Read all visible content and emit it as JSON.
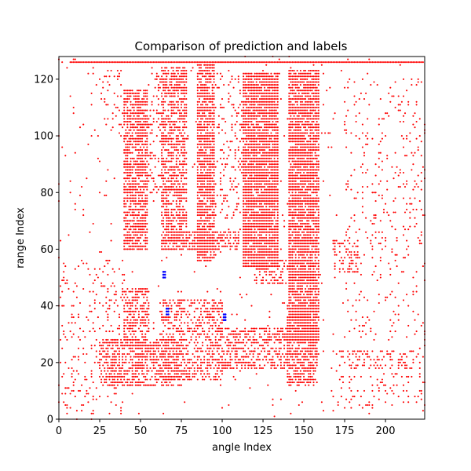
{
  "chart_data": {
    "type": "scatter",
    "title": "Comparison of prediction and labels",
    "xlabel": "angle Index",
    "ylabel": "range Index",
    "xlim": [
      0,
      224
    ],
    "ylim": [
      0,
      128
    ],
    "xticks": [
      0,
      25,
      50,
      75,
      100,
      125,
      150,
      175,
      200
    ],
    "yticks": [
      0,
      20,
      40,
      60,
      80,
      100,
      120
    ],
    "grid": false,
    "legend": "none",
    "colors": {
      "prediction": "#ff0000",
      "labels": "#0000ff"
    },
    "series": [
      {
        "marker_color": "#ff0000",
        "regions": [
          {
            "x": [
              7,
              223
            ],
            "y": [
              126,
              126
            ],
            "density": 1.0
          },
          {
            "x": [
              40,
              54
            ],
            "y": [
              60,
              116
            ],
            "density": 0.75
          },
          {
            "x": [
              63,
              78
            ],
            "y": [
              62,
              124
            ],
            "density": 0.65
          },
          {
            "x": [
              85,
              95
            ],
            "y": [
              56,
              126
            ],
            "density": 0.85
          },
          {
            "x": [
              113,
              134
            ],
            "y": [
              54,
              122
            ],
            "density": 0.9
          },
          {
            "x": [
              141,
              159
            ],
            "y": [
              28,
              123
            ],
            "density": 0.85
          },
          {
            "x": [
              63,
              110
            ],
            "y": [
              60,
              66
            ],
            "density": 0.6
          },
          {
            "x": [
              25,
              75
            ],
            "y": [
              12,
              28
            ],
            "density": 0.55
          },
          {
            "x": [
              40,
              55
            ],
            "y": [
              26,
              46
            ],
            "density": 0.6
          },
          {
            "x": [
              63,
              100
            ],
            "y": [
              14,
              42
            ],
            "density": 0.45
          },
          {
            "x": [
              100,
              140
            ],
            "y": [
              18,
              32
            ],
            "density": 0.5
          },
          {
            "x": [
              140,
              158
            ],
            "y": [
              12,
              40
            ],
            "density": 0.7
          },
          {
            "x": [
              120,
              160
            ],
            "y": [
              48,
              56
            ],
            "density": 0.4
          },
          {
            "x": [
              168,
              183
            ],
            "y": [
              52,
              63
            ],
            "density": 0.35
          },
          {
            "x": [
              170,
              224
            ],
            "y": [
              18,
              24
            ],
            "density": 0.25
          },
          {
            "x": [
              170,
              224
            ],
            "y": [
              4,
              16
            ],
            "density": 0.12
          },
          {
            "x": [
              0,
              40
            ],
            "y": [
              2,
              56
            ],
            "density": 0.08
          },
          {
            "x": [
              175,
              224
            ],
            "y": [
              28,
              120
            ],
            "density": 0.07
          },
          {
            "x": [
              55,
              65
            ],
            "y": [
              80,
              122
            ],
            "density": 0.25
          },
          {
            "x": [
              95,
              113
            ],
            "y": [
              70,
              122
            ],
            "density": 0.15
          },
          {
            "x": [
              20,
              40
            ],
            "y": [
              100,
              124
            ],
            "density": 0.1
          },
          {
            "x": [
              0,
              224
            ],
            "y": [
              0,
              128
            ],
            "density": 0.015
          }
        ]
      },
      {
        "marker_color": "#0000ff",
        "points": [
          [
            64,
            51
          ],
          [
            65,
            51
          ],
          [
            64,
            52
          ],
          [
            65,
            52
          ],
          [
            64,
            50
          ],
          [
            65,
            50
          ],
          [
            66,
            38
          ],
          [
            67,
            38
          ],
          [
            66,
            39
          ],
          [
            67,
            39
          ],
          [
            66,
            37
          ],
          [
            67,
            37
          ],
          [
            101,
            35
          ],
          [
            102,
            35
          ],
          [
            101,
            36
          ],
          [
            102,
            36
          ],
          [
            101,
            37
          ],
          [
            102,
            37
          ]
        ]
      }
    ]
  }
}
